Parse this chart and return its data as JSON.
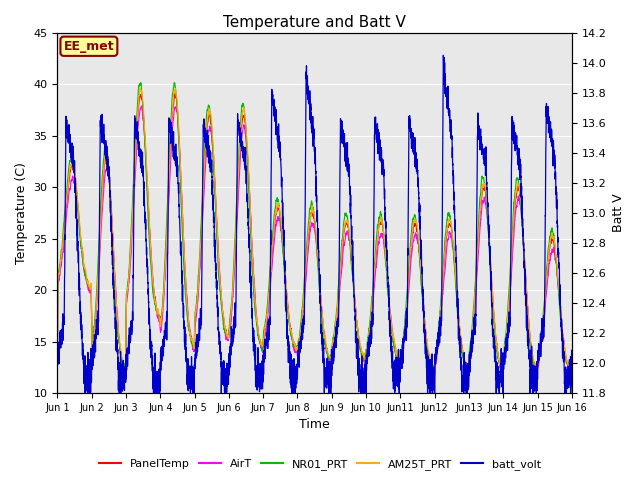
{
  "title": "Temperature and Batt V",
  "ylabel_left": "Temperature (C)",
  "ylabel_right": "Batt V",
  "xlabel": "Time",
  "annotation": "EE_met",
  "ylim_left": [
    10,
    45
  ],
  "ylim_right": [
    11.8,
    14.2
  ],
  "background_color": "#ffffff",
  "plot_bg_color": "#e8e8e8",
  "grid_color": "#ffffff",
  "legend_entries": [
    "PanelTemp",
    "AirT",
    "NR01_PRT",
    "AM25T_PRT",
    "batt_volt"
  ],
  "legend_colors": [
    "#ff0000",
    "#ff00ff",
    "#00bb00",
    "#ffaa00",
    "#0000cc"
  ],
  "line_colors": {
    "PanelTemp": "#ff0000",
    "AirT": "#ff00ff",
    "NR01_PRT": "#00bb00",
    "AM25T_PRT": "#ffaa00",
    "batt_volt": "#0000cc"
  },
  "x_tick_labels": [
    "Jun 1",
    "Jun 2",
    "Jun 3",
    "Jun 4",
    "Jun 5",
    "Jun 6",
    "Jun 7",
    "Jun 8",
    "Jun 9",
    "Jun 10",
    "Jun11",
    "Jun12",
    "Jun13",
    "Jun 14",
    "Jun 15",
    "Jun 16"
  ],
  "num_days": 15,
  "figsize": [
    6.4,
    4.8
  ],
  "dpi": 100
}
